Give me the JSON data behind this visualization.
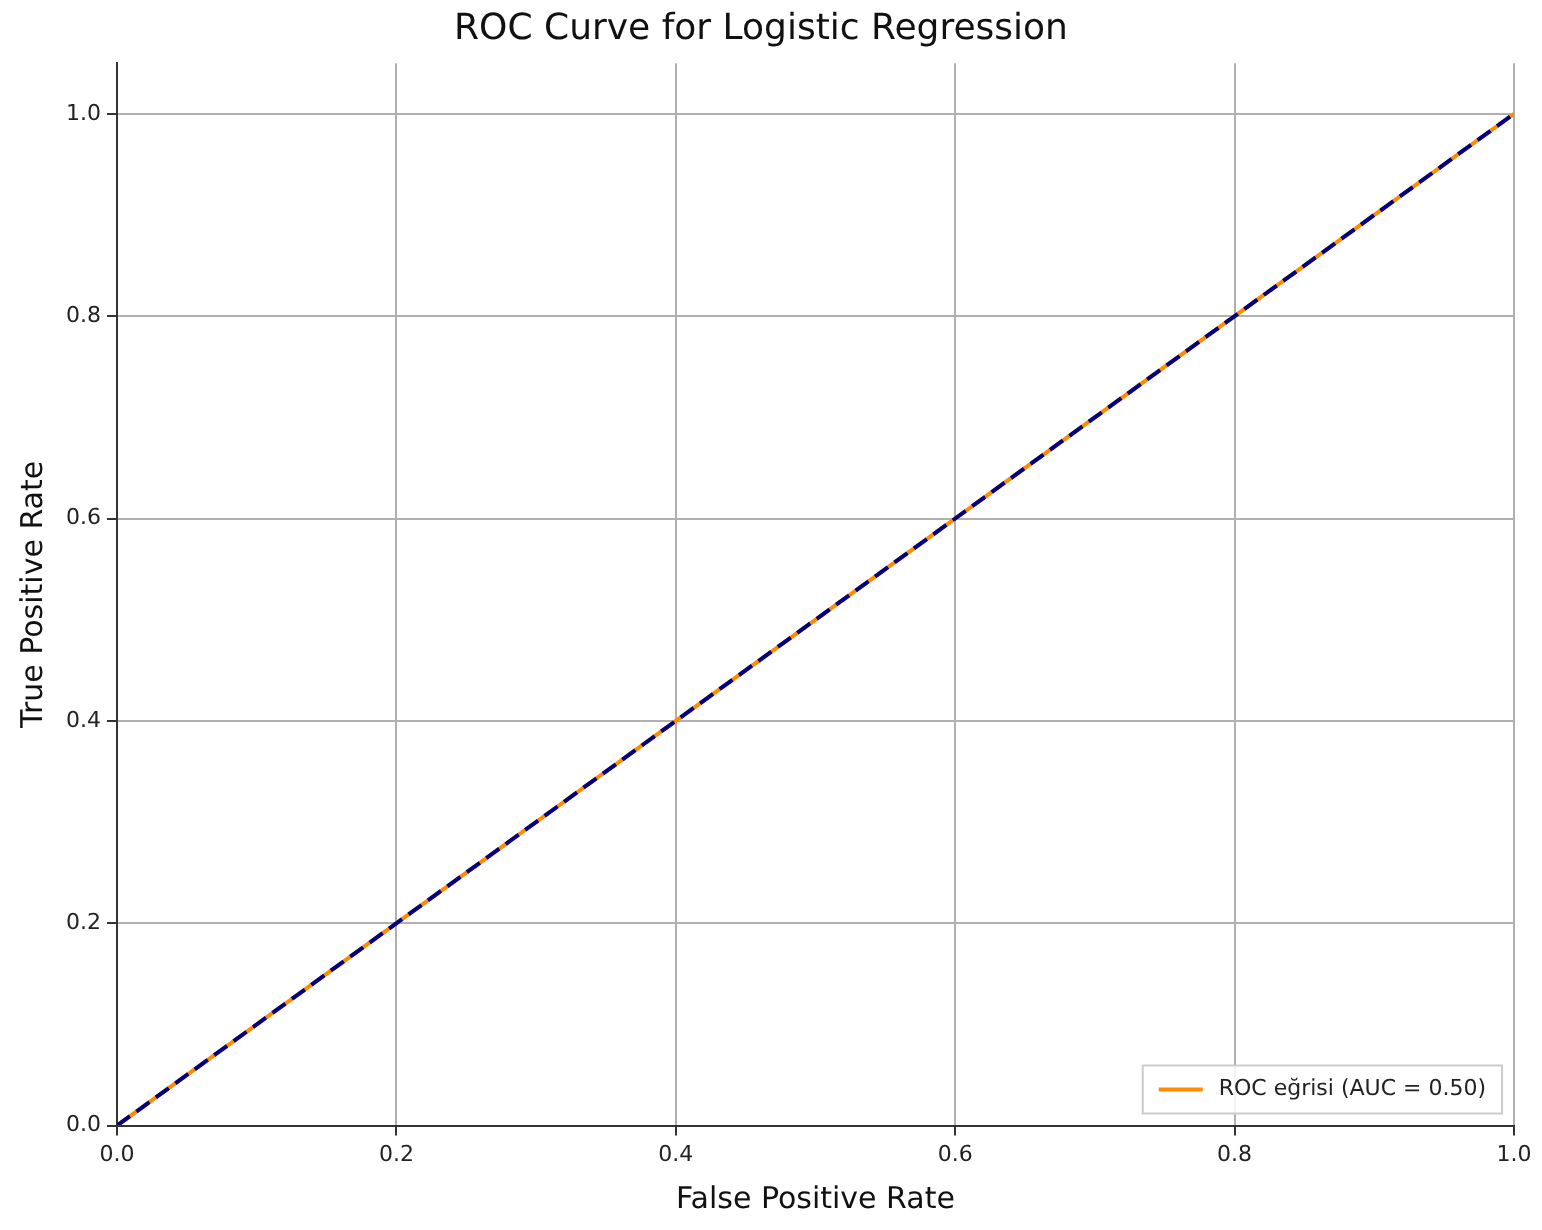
{
  "chart_data": {
    "type": "line",
    "title": "ROC Curve for Logistic Regression",
    "xlabel": "False Positive Rate",
    "ylabel": "True Positive Rate",
    "x": [
      0,
      1
    ],
    "series": [
      {
        "name": "ROC eğrisi (AUC = 0.50)",
        "color": "#ff8c00",
        "values": [
          0,
          1
        ],
        "line_style": "solid"
      },
      {
        "color": "#000080",
        "values": [
          0,
          1
        ],
        "line_style": "dashed"
      }
    ],
    "xlim": [
      0,
      1
    ],
    "ylim": [
      0,
      1.05
    ],
    "xticks": [
      {
        "value": 0,
        "label": "0.0"
      },
      0.2,
      0.4,
      0.6,
      0.8,
      {
        "value": 1,
        "label": "1.0"
      }
    ],
    "yticks": [
      {
        "value": 0,
        "label": "0.0"
      },
      0.2,
      0.4,
      0.6,
      0.8,
      {
        "value": 1,
        "label": "1.0"
      }
    ],
    "grid": true,
    "legend": "bottom right",
    "marker": "none"
  }
}
